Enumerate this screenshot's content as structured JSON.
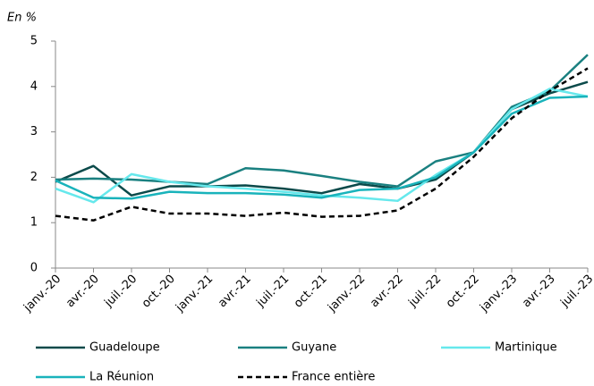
{
  "chart_data": {
    "type": "line",
    "y_label": "En %",
    "categories": [
      "janv.-20",
      "avr.-20",
      "juil.-20",
      "oct.-20",
      "janv.-21",
      "avr.-21",
      "juil.-21",
      "oct.-21",
      "janv.-22",
      "avr.-22",
      "juil.-22",
      "oct.-22",
      "janv.-23",
      "avr.-23",
      "juil.-23"
    ],
    "series": [
      {
        "name": "Guadeloupe",
        "color": "#0b4a4a",
        "values": [
          1.9,
          2.25,
          1.6,
          1.8,
          1.8,
          1.82,
          1.75,
          1.65,
          1.85,
          1.75,
          1.95,
          2.55,
          3.5,
          3.85,
          4.1
        ]
      },
      {
        "name": "Guyane",
        "color": "#1a8080",
        "values": [
          1.95,
          1.97,
          1.95,
          1.9,
          1.85,
          2.2,
          2.15,
          2.03,
          1.9,
          1.8,
          2.35,
          2.55,
          3.55,
          3.9,
          4.7
        ]
      },
      {
        "name": "Martinique",
        "color": "#66e8ec",
        "values": [
          1.75,
          1.45,
          2.07,
          1.9,
          1.8,
          1.75,
          1.68,
          1.6,
          1.55,
          1.48,
          2.05,
          2.55,
          3.5,
          3.95,
          3.78
        ]
      },
      {
        "name": "La Réunion",
        "color": "#19b3bb",
        "values": [
          1.93,
          1.55,
          1.53,
          1.68,
          1.65,
          1.65,
          1.62,
          1.55,
          1.72,
          1.75,
          2.0,
          2.55,
          3.4,
          3.75,
          3.78
        ]
      },
      {
        "name": "France entière",
        "color": "#000000",
        "dashed": true,
        "values": [
          1.15,
          1.05,
          1.35,
          1.2,
          1.2,
          1.15,
          1.22,
          1.13,
          1.15,
          1.27,
          1.75,
          2.45,
          3.3,
          3.9,
          4.4
        ]
      }
    ],
    "ylim": [
      0,
      5
    ],
    "yticks": [
      0,
      1,
      2,
      3,
      4,
      5
    ],
    "grid": false
  }
}
